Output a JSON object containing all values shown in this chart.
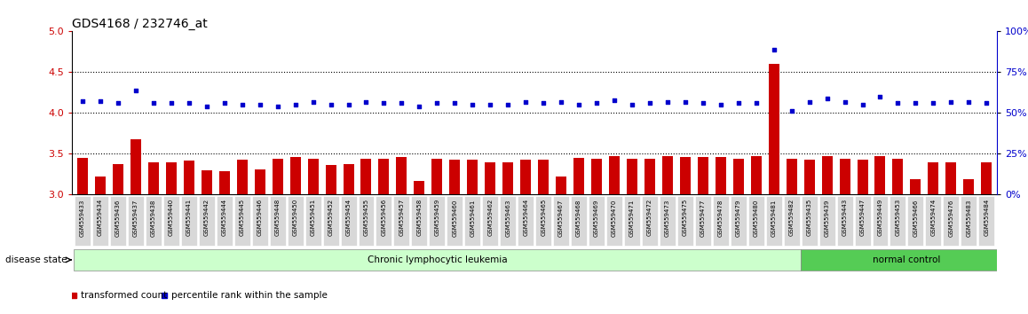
{
  "title": "GDS4168 / 232746_at",
  "samples": [
    "GSM559433",
    "GSM559434",
    "GSM559436",
    "GSM559437",
    "GSM559438",
    "GSM559440",
    "GSM559441",
    "GSM559442",
    "GSM559444",
    "GSM559445",
    "GSM559446",
    "GSM559448",
    "GSM559450",
    "GSM559451",
    "GSM559452",
    "GSM559454",
    "GSM559455",
    "GSM559456",
    "GSM559457",
    "GSM559458",
    "GSM559459",
    "GSM559460",
    "GSM559461",
    "GSM559462",
    "GSM559463",
    "GSM559464",
    "GSM559465",
    "GSM559467",
    "GSM559468",
    "GSM559469",
    "GSM559470",
    "GSM559471",
    "GSM559472",
    "GSM559473",
    "GSM559475",
    "GSM559477",
    "GSM559478",
    "GSM559479",
    "GSM559480",
    "GSM559481",
    "GSM559482",
    "GSM559435",
    "GSM559439",
    "GSM559443",
    "GSM559447",
    "GSM559449",
    "GSM559453",
    "GSM559466",
    "GSM559474",
    "GSM559476",
    "GSM559483",
    "GSM559484"
  ],
  "bar_values": [
    3.45,
    3.22,
    3.37,
    3.68,
    3.4,
    3.4,
    3.42,
    3.3,
    3.29,
    3.43,
    3.31,
    3.44,
    3.46,
    3.44,
    3.36,
    3.38,
    3.44,
    3.44,
    3.46,
    3.17,
    3.44,
    3.43,
    3.43,
    3.4,
    3.4,
    3.43,
    3.43,
    3.22,
    3.45,
    3.44,
    3.47,
    3.44,
    3.44,
    3.47,
    3.46,
    3.46,
    3.46,
    3.44,
    3.47,
    4.6,
    3.44,
    3.43,
    3.47,
    3.44,
    3.43,
    3.47,
    3.44,
    3.19,
    3.4,
    3.4,
    3.19,
    3.4
  ],
  "percentile_values": [
    57.5,
    57.5,
    56.0,
    64.0,
    56.0,
    56.0,
    56.0,
    54.0,
    56.0,
    55.0,
    55.0,
    54.0,
    55.0,
    57.0,
    55.0,
    55.0,
    57.0,
    56.0,
    56.0,
    54.0,
    56.0,
    56.0,
    55.0,
    55.0,
    55.0,
    57.0,
    56.0,
    57.0,
    55.0,
    56.0,
    58.0,
    55.0,
    56.0,
    57.0,
    57.0,
    56.0,
    55.0,
    56.0,
    56.0,
    89.0,
    51.5,
    57.0,
    59.0,
    57.0,
    55.0,
    60.0,
    56.0,
    56.0,
    56.0,
    57.0,
    57.0,
    56.0
  ],
  "disease_groups": [
    {
      "label": "Chronic lymphocytic leukemia",
      "start": 0,
      "end": 40,
      "color": "#ccffcc"
    },
    {
      "label": "normal control",
      "start": 41,
      "end": 52,
      "color": "#55cc55"
    }
  ],
  "ylim_left": [
    3.0,
    5.0
  ],
  "yticks_left": [
    3.0,
    3.5,
    4.0,
    4.5,
    5.0
  ],
  "ylim_right": [
    0,
    100
  ],
  "yticks_right": [
    0,
    25,
    50,
    75,
    100
  ],
  "bar_color": "#cc0000",
  "dot_color": "#0000cc",
  "bg_color": "#ffffff",
  "left_label_color": "#cc0000",
  "right_label_color": "#0000cc",
  "dotted_lines": [
    3.5,
    4.0,
    4.5
  ],
  "legend_items": [
    {
      "label": "transformed count",
      "color": "#cc0000"
    },
    {
      "label": "percentile rank within the sample",
      "color": "#0000cc"
    }
  ]
}
